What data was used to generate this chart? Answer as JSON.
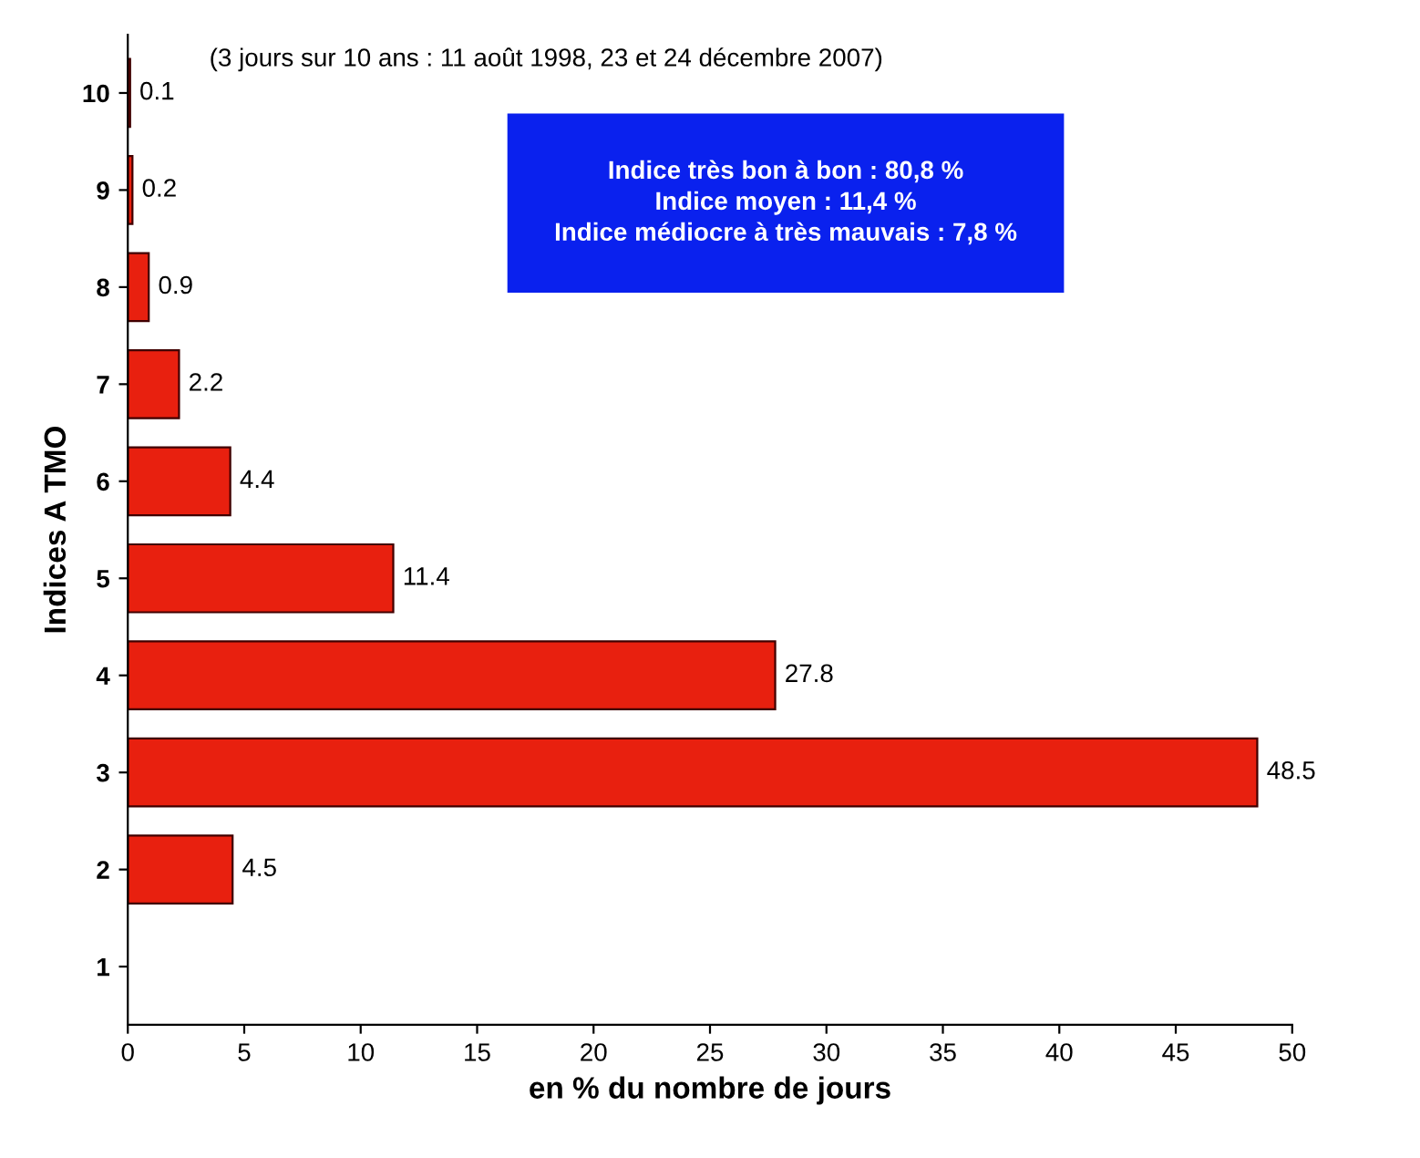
{
  "chart_data": {
    "type": "bar",
    "orientation": "horizontal",
    "categories": [
      "10",
      "9",
      "8",
      "7",
      "6",
      "5",
      "4",
      "3",
      "2",
      "1"
    ],
    "values": [
      0.1,
      0.2,
      0.9,
      2.2,
      4.4,
      11.4,
      27.8,
      48.5,
      4.5,
      null
    ],
    "value_labels": [
      "0.1",
      "0.2",
      "0.9",
      "2.2",
      "4.4",
      "11.4",
      "27.8",
      "48.5",
      "4.5",
      null
    ],
    "color": "#e8200f",
    "xlim": [
      0,
      50
    ],
    "xticks": [
      0,
      5,
      10,
      15,
      20,
      25,
      30,
      35,
      40,
      45,
      50
    ],
    "xlabel": "en % du nombre de jours",
    "ylabel": "Indices A TMO",
    "grid": false,
    "legend": false,
    "annotations": [
      "(3 jours sur 10 ans : 11 août 1998, 23 et 24 décembre 2007)",
      "Indice très bon à bon : 80,8 %\nIndice moyen : 11,4 %\nIndice médiocre à très mauvais : 7,8 %"
    ]
  }
}
